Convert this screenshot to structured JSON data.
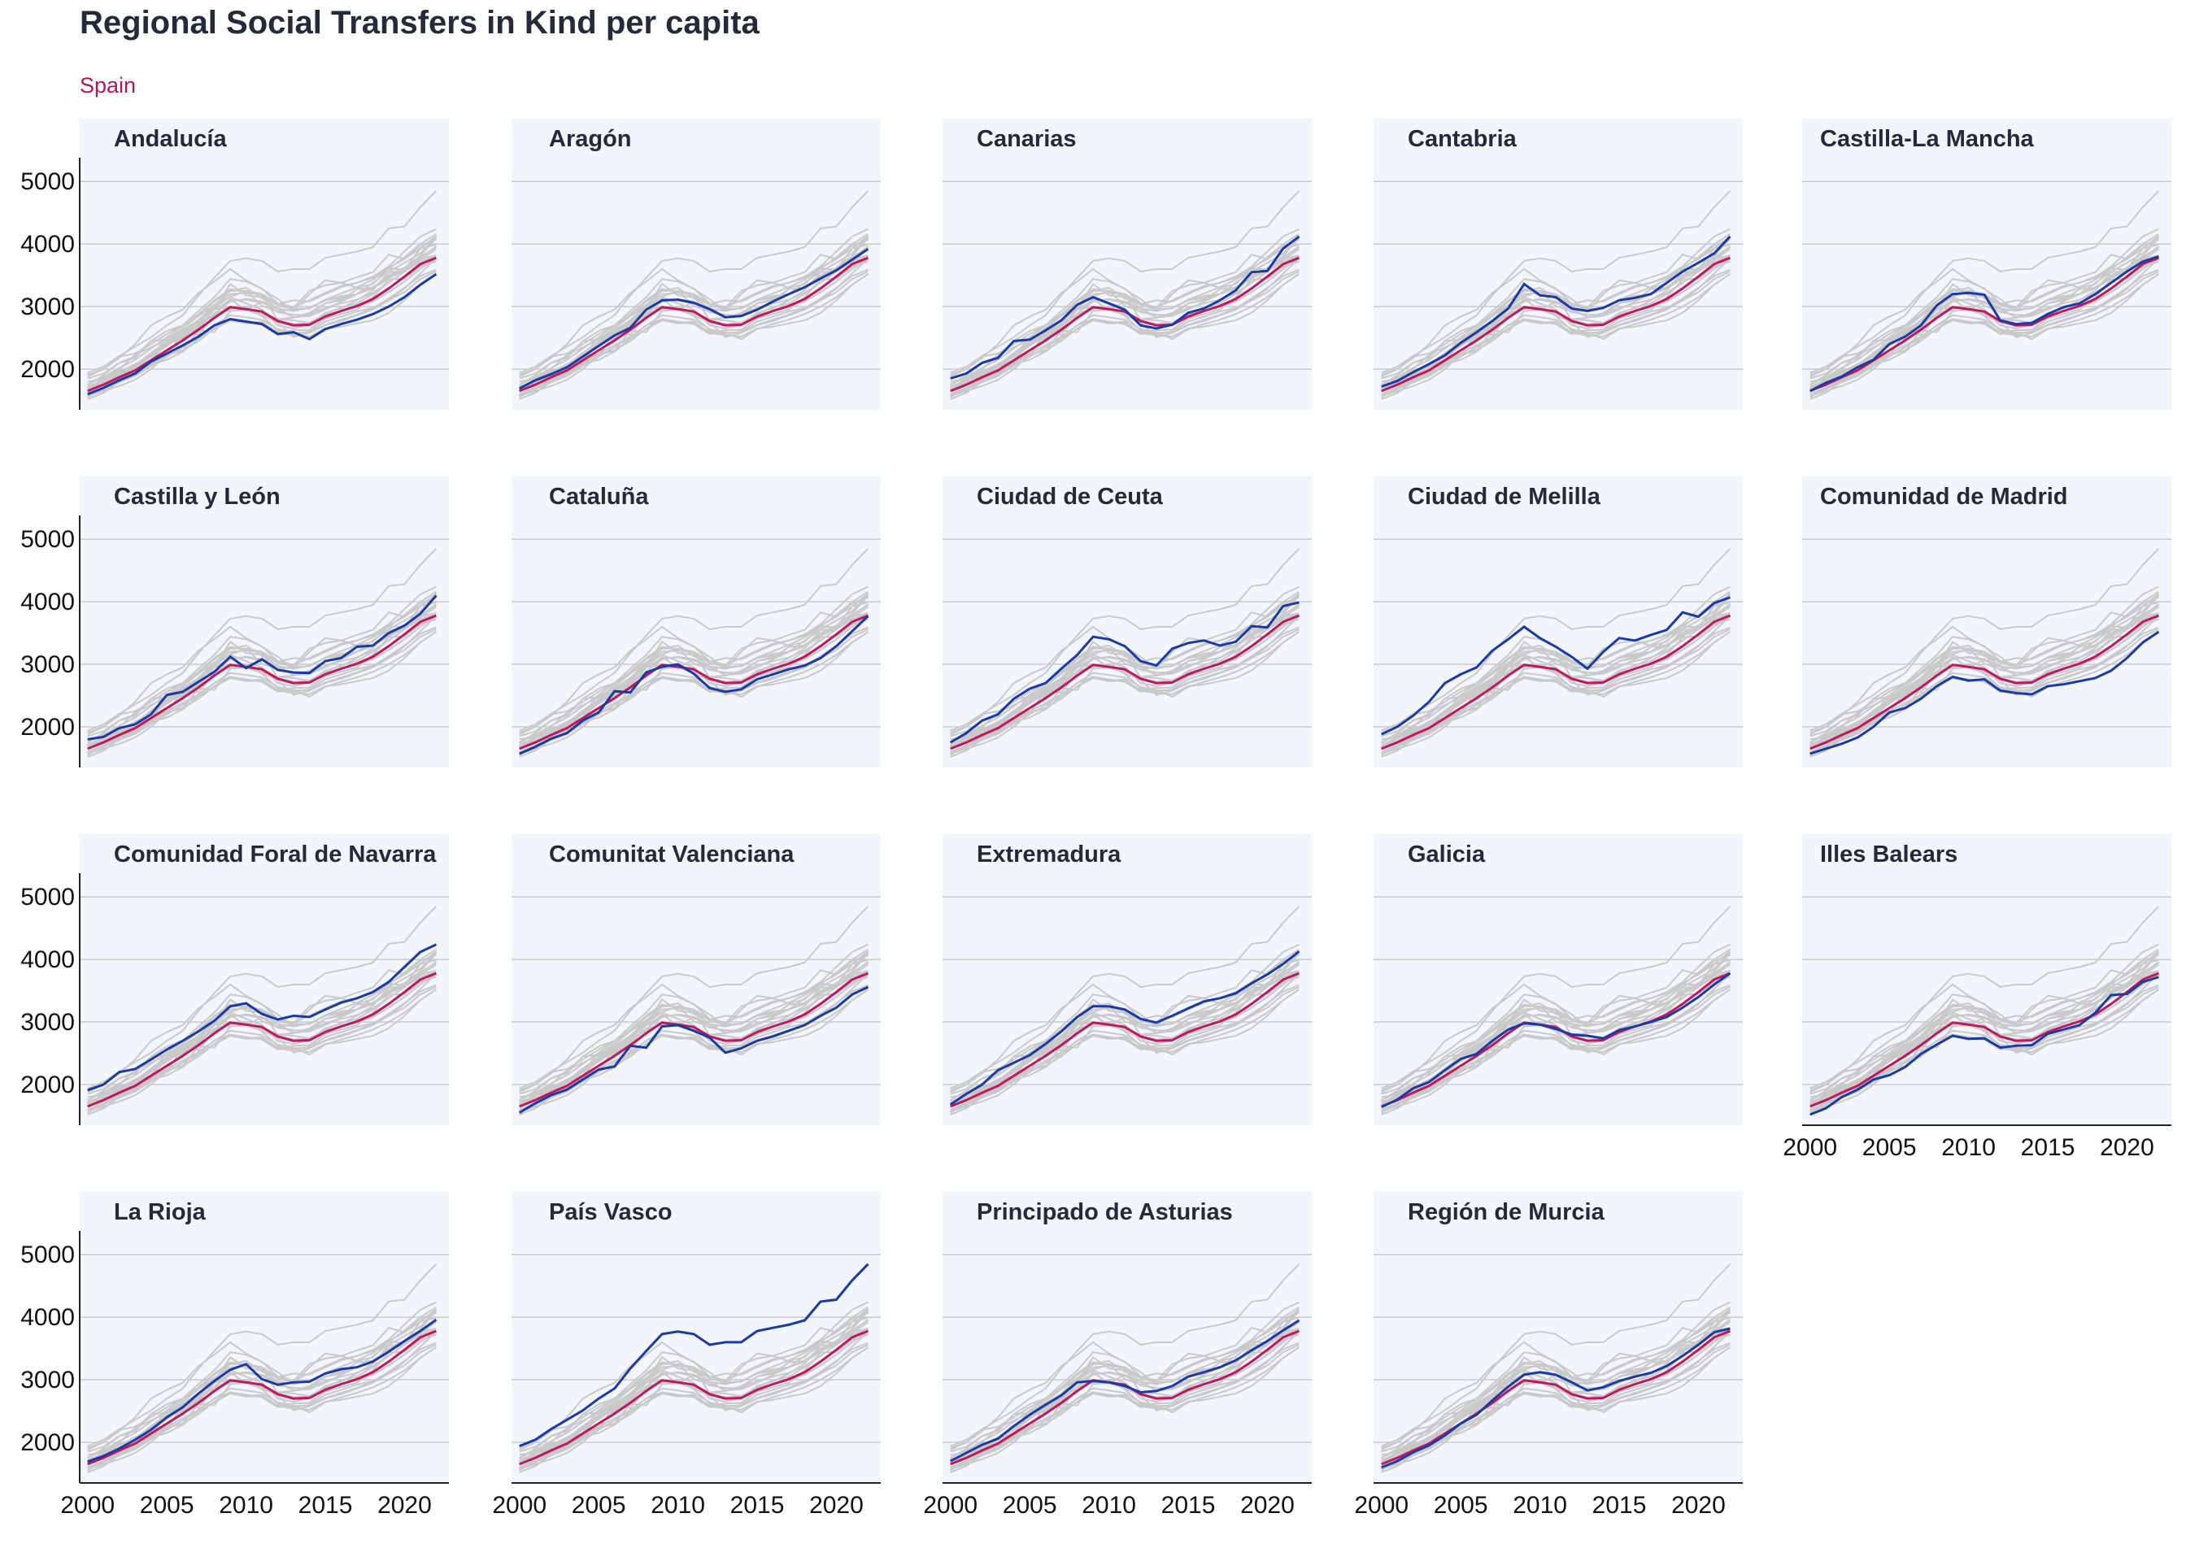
{
  "title": "Regional Social Transfers in Kind per capita",
  "subtitle": "Spain",
  "colors": {
    "region": "#1a3aa8",
    "spain": "#c2185b",
    "others": "#c9c9c9",
    "panel_background": "#f2f5fc",
    "title": "#252a3a",
    "subtitle": "#b0175a"
  },
  "chart_data": {
    "type": "line",
    "facet": "small multiples, one panel per region; each panel highlights one region in blue, Spain in magenta, all other regions in grey",
    "x_ticks": [
      2000,
      2005,
      2010,
      2015,
      2020
    ],
    "y_ticks": [
      2000,
      3000,
      4000,
      5000
    ],
    "xlim": [
      1999.5,
      2022.8
    ],
    "ylim": [
      1350,
      5380
    ],
    "grid": "horizontal only",
    "x": [
      2000,
      2001,
      2002,
      2003,
      2004,
      2005,
      2006,
      2007,
      2008,
      2009,
      2010,
      2011,
      2012,
      2013,
      2014,
      2015,
      2016,
      2017,
      2018,
      2019,
      2020,
      2021,
      2022
    ],
    "spain": [
      1650,
      1750,
      1870,
      1980,
      2140,
      2300,
      2460,
      2630,
      2820,
      2990,
      2960,
      2920,
      2770,
      2700,
      2710,
      2840,
      2930,
      3010,
      3120,
      3290,
      3480,
      3680,
      3780
    ],
    "series": [
      {
        "name": "Andalucía",
        "values": [
          1600,
          1700,
          1820,
          1930,
          2120,
          2250,
          2380,
          2520,
          2700,
          2800,
          2760,
          2720,
          2560,
          2590,
          2480,
          2640,
          2720,
          2790,
          2880,
          3000,
          3150,
          3350,
          3520
        ]
      },
      {
        "name": "Aragón",
        "values": [
          1690,
          1820,
          1920,
          2030,
          2200,
          2370,
          2540,
          2660,
          2950,
          3100,
          3110,
          3060,
          2960,
          2830,
          2850,
          2950,
          3080,
          3200,
          3310,
          3450,
          3580,
          3750,
          3920
        ]
      },
      {
        "name": "Canarias",
        "values": [
          1850,
          1930,
          2100,
          2180,
          2450,
          2470,
          2620,
          2780,
          3030,
          3150,
          3050,
          2950,
          2700,
          2650,
          2710,
          2900,
          2970,
          3100,
          3260,
          3550,
          3570,
          3930,
          4120
        ]
      },
      {
        "name": "Cantabria",
        "values": [
          1720,
          1810,
          1950,
          2080,
          2220,
          2420,
          2590,
          2770,
          2970,
          3360,
          3180,
          3150,
          2970,
          2930,
          2980,
          3100,
          3140,
          3200,
          3380,
          3560,
          3700,
          3850,
          4120
        ]
      },
      {
        "name": "Castilla-La Mancha",
        "values": [
          1650,
          1780,
          1880,
          2030,
          2150,
          2400,
          2520,
          2700,
          3020,
          3200,
          3220,
          3190,
          2780,
          2720,
          2740,
          2880,
          2990,
          3050,
          3200,
          3380,
          3560,
          3720,
          3800
        ]
      },
      {
        "name": "Castilla y León",
        "values": [
          1800,
          1840,
          1980,
          2040,
          2200,
          2510,
          2560,
          2720,
          2880,
          3120,
          2940,
          3080,
          2910,
          2870,
          2860,
          3050,
          3100,
          3280,
          3300,
          3500,
          3620,
          3810,
          4100
        ]
      },
      {
        "name": "Cataluña",
        "values": [
          1570,
          1680,
          1810,
          1900,
          2100,
          2230,
          2570,
          2550,
          2870,
          2960,
          3000,
          2850,
          2620,
          2560,
          2600,
          2760,
          2840,
          2920,
          2980,
          3100,
          3290,
          3530,
          3770
        ]
      },
      {
        "name": "Ciudad de Ceuta",
        "values": [
          1750,
          1900,
          2100,
          2200,
          2450,
          2610,
          2700,
          2930,
          3150,
          3440,
          3400,
          3290,
          3050,
          2980,
          3250,
          3340,
          3380,
          3300,
          3360,
          3610,
          3590,
          3930,
          3990
        ]
      },
      {
        "name": "Ciudad de Melilla",
        "values": [
          1880,
          2000,
          2180,
          2400,
          2700,
          2840,
          2950,
          3220,
          3400,
          3600,
          3420,
          3280,
          3120,
          2930,
          3200,
          3420,
          3380,
          3470,
          3550,
          3830,
          3760,
          3980,
          4070
        ]
      },
      {
        "name": "Comunidad de Madrid",
        "values": [
          1570,
          1650,
          1730,
          1830,
          2000,
          2230,
          2300,
          2450,
          2650,
          2800,
          2740,
          2760,
          2580,
          2540,
          2520,
          2650,
          2680,
          2730,
          2780,
          2900,
          3100,
          3350,
          3520
        ]
      },
      {
        "name": "Comunidad Foral de Navarra",
        "values": [
          1910,
          2000,
          2200,
          2250,
          2400,
          2560,
          2700,
          2850,
          3020,
          3250,
          3300,
          3130,
          3040,
          3100,
          3080,
          3200,
          3310,
          3380,
          3480,
          3640,
          3880,
          4120,
          4240
        ]
      },
      {
        "name": "Comunitat Valenciana",
        "values": [
          1550,
          1700,
          1830,
          1920,
          2080,
          2240,
          2290,
          2620,
          2590,
          2930,
          2950,
          2860,
          2750,
          2510,
          2580,
          2700,
          2770,
          2860,
          2950,
          3100,
          3230,
          3440,
          3560
        ]
      },
      {
        "name": "Extremadura",
        "values": [
          1680,
          1850,
          2000,
          2230,
          2350,
          2470,
          2650,
          2850,
          3080,
          3250,
          3250,
          3200,
          3050,
          2990,
          3100,
          3220,
          3330,
          3380,
          3460,
          3620,
          3760,
          3930,
          4130
        ]
      },
      {
        "name": "Galicia",
        "values": [
          1640,
          1760,
          1940,
          2040,
          2230,
          2410,
          2490,
          2700,
          2880,
          2980,
          2960,
          2890,
          2800,
          2780,
          2740,
          2870,
          2930,
          3000,
          3080,
          3230,
          3400,
          3600,
          3780
        ]
      },
      {
        "name": "Illes Balears",
        "values": [
          1520,
          1620,
          1800,
          1920,
          2080,
          2150,
          2280,
          2490,
          2640,
          2780,
          2730,
          2740,
          2590,
          2620,
          2630,
          2810,
          2880,
          2950,
          3150,
          3430,
          3450,
          3640,
          3720
        ]
      },
      {
        "name": "La Rioja",
        "values": [
          1690,
          1780,
          1900,
          2040,
          2200,
          2400,
          2560,
          2780,
          2980,
          3160,
          3250,
          3010,
          2920,
          2960,
          2970,
          3100,
          3170,
          3200,
          3290,
          3450,
          3620,
          3780,
          3960
        ]
      },
      {
        "name": "País Vasco",
        "values": [
          1940,
          2040,
          2210,
          2360,
          2510,
          2700,
          2860,
          3180,
          3460,
          3730,
          3770,
          3730,
          3560,
          3600,
          3600,
          3780,
          3830,
          3880,
          3950,
          4250,
          4280,
          4590,
          4850
        ]
      },
      {
        "name": "Principado de Asturias",
        "values": [
          1700,
          1830,
          1960,
          2060,
          2260,
          2440,
          2600,
          2750,
          2960,
          2980,
          2960,
          2900,
          2800,
          2820,
          2900,
          3050,
          3120,
          3200,
          3310,
          3470,
          3620,
          3790,
          3950
        ]
      },
      {
        "name": "Región de Murcia",
        "values": [
          1600,
          1700,
          1840,
          1950,
          2110,
          2300,
          2440,
          2670,
          2890,
          3080,
          3120,
          3080,
          2960,
          2830,
          2880,
          2980,
          3050,
          3110,
          3220,
          3380,
          3560,
          3760,
          3820
        ]
      }
    ],
    "grey_only_series": [
      {
        "values": [
          1750,
          1870,
          2020,
          2150,
          2330,
          2510,
          2690,
          2880,
          3100,
          3280,
          3240,
          3180,
          3020,
          2960,
          2970,
          3110,
          3210,
          3310,
          3430,
          3600,
          3790,
          4000,
          4160
        ]
      },
      {
        "values": [
          1580,
          1680,
          1790,
          1890,
          2050,
          2200,
          2350,
          2510,
          2700,
          2860,
          2830,
          2790,
          2640,
          2580,
          2590,
          2710,
          2790,
          2870,
          2970,
          3130,
          3300,
          3490,
          3590
        ]
      }
    ]
  }
}
